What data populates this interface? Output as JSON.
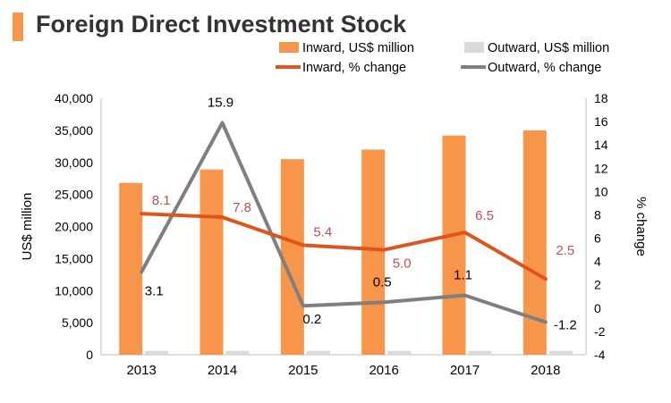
{
  "title": "Foreign Direct Investment Stock",
  "colors": {
    "title_bar": "#f7964a",
    "inward_bar": "#f7964a",
    "outward_bar": "#d9d9d9",
    "inward_line": "#e0541c",
    "outward_line": "#7f7f7f",
    "inward_label": "#c0504d",
    "outward_label": "#000000"
  },
  "chart_data": {
    "type": "bar",
    "categories": [
      "2013",
      "2014",
      "2015",
      "2016",
      "2017",
      "2018"
    ],
    "ylabel": "US$ million",
    "ylim": [
      0,
      40000
    ],
    "yticks": [
      "0",
      "5,000",
      "10,000",
      "15,000",
      "20,000",
      "25,000",
      "30,000",
      "35,000",
      "40,000"
    ],
    "y2label": "% change",
    "y2lim": [
      -4,
      18
    ],
    "y2ticks": [
      "-4",
      "-2",
      "0",
      "2",
      "4",
      "6",
      "8",
      "10",
      "12",
      "14",
      "16",
      "18"
    ],
    "legend_position": "top-right",
    "series": [
      {
        "name": "Inward, US$ million",
        "type": "bar",
        "axis": "left",
        "values": [
          26800,
          28900,
          30500,
          32000,
          34200,
          35000
        ]
      },
      {
        "name": "Outward, US$ million",
        "type": "bar",
        "axis": "left",
        "values": [
          600,
          600,
          600,
          600,
          600,
          600
        ]
      },
      {
        "name": "Inward, % change",
        "type": "line",
        "axis": "right",
        "values": [
          8.1,
          7.8,
          5.4,
          5.0,
          6.5,
          2.5
        ],
        "labels": [
          "8.1",
          "7.8",
          "5.4",
          "5.0",
          "6.5",
          "2.5"
        ]
      },
      {
        "name": "Outward, % change",
        "type": "line",
        "axis": "right",
        "values": [
          3.1,
          15.9,
          0.2,
          0.5,
          1.1,
          -1.2
        ],
        "labels": [
          "3.1",
          "15.9",
          "0.2",
          "0.5",
          "1.1",
          "-1.2"
        ]
      }
    ]
  }
}
